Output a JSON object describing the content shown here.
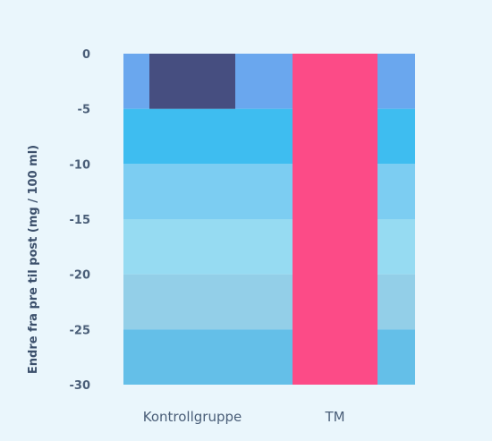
{
  "chart_data": {
    "type": "bar",
    "ylabel": "Endre fra pre til post (mg / 100 ml)",
    "ylim": [
      -30,
      0
    ],
    "yticks": [
      0,
      -5,
      -10,
      -15,
      -20,
      -25,
      -30
    ],
    "categories": [
      "Kontrollgruppe",
      "TM"
    ],
    "values": [
      -5,
      -30
    ],
    "bar_colors": [
      "#464e80",
      "#fc4b87"
    ],
    "band_colors": [
      "#6aa7ee",
      "#3ebdf0",
      "#7ccdf2",
      "#96dbf2",
      "#93cfe8",
      "#64bfe8"
    ],
    "background": "#eaf6fc"
  }
}
